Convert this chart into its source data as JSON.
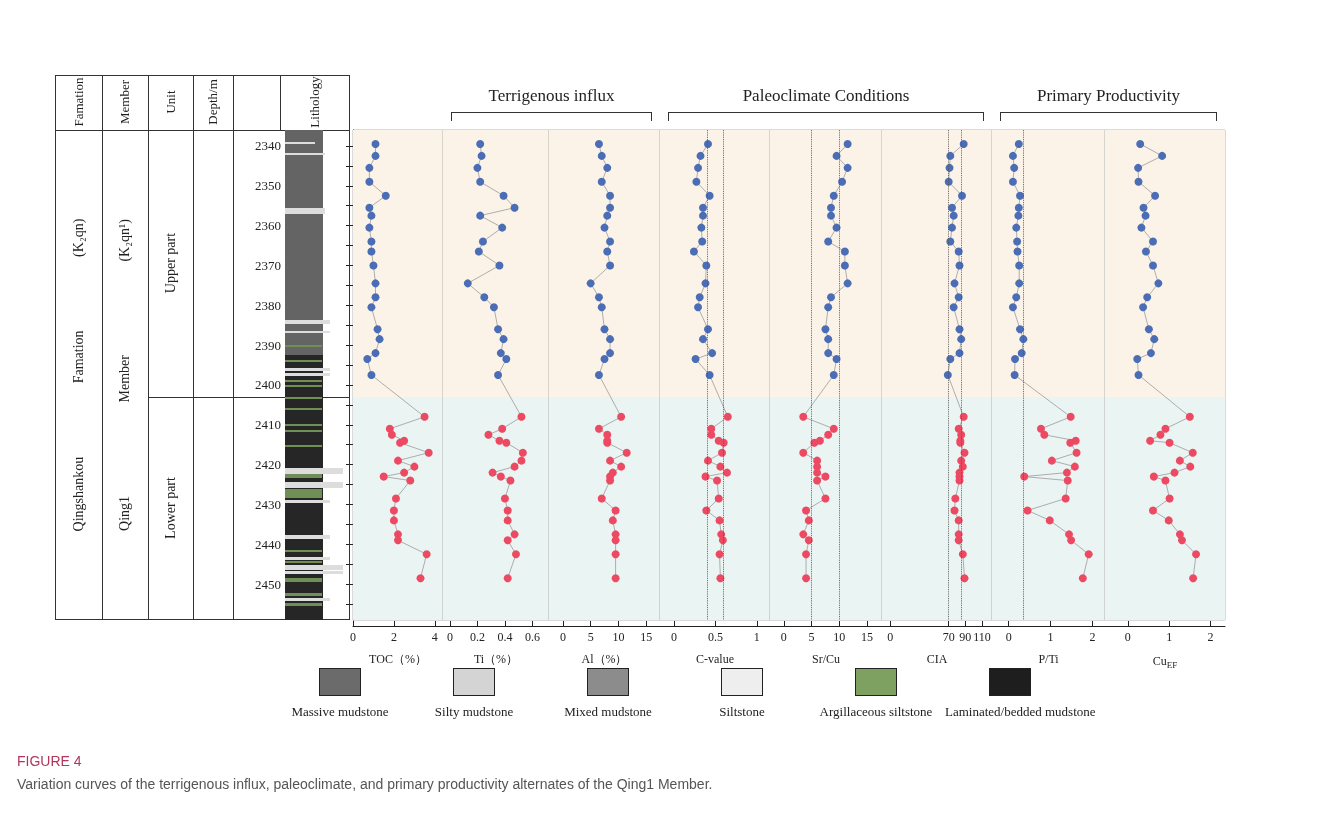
{
  "chart_data": [
    {
      "type": "line",
      "xlabel": "TOC（%）",
      "ylabel": "Depth/m",
      "annotations": [
        "Famation",
        "Member",
        "Unit",
        "Lithology",
        "Qingshankou Famation (K₂qn)",
        "Qing1 Member (K₂qn¹)",
        "Upper part",
        "Lower part"
      ],
      "xlim": [
        0,
        4.4
      ],
      "xticks": [
        0,
        2,
        4
      ],
      "ylim": [
        2459,
        2336
      ],
      "yticks": [
        2340,
        {
          "value": 2345,
          "label": null
        },
        2350,
        {
          "value": 2355,
          "label": null
        },
        2360,
        {
          "value": 2365,
          "label": null
        },
        2370,
        {
          "value": 2375,
          "label": null
        },
        2380,
        {
          "value": 2385,
          "label": null
        },
        2390,
        {
          "value": 2395,
          "label": null
        },
        2400,
        {
          "value": 2405,
          "label": null
        },
        2410,
        {
          "value": 2415,
          "label": null
        },
        2420,
        {
          "value": 2425,
          "label": null
        },
        2430,
        {
          "value": 2435,
          "label": null
        },
        2440,
        {
          "value": 2445,
          "label": null
        },
        2450,
        {
          "value": 2455,
          "label": null
        }
      ],
      "marker": "circle",
      "bands": [
        {
          "axis": "y",
          "from": 2336,
          "to": 2403,
          "color": "#fcf3e8"
        },
        {
          "axis": "y",
          "from": 2403,
          "to": 2459,
          "color": "#eaf4f2"
        }
      ],
      "series": [
        {
          "colors": [
            "#4a6db5",
            "#4a6db5",
            "#4a6db5",
            "#4a6db5",
            "#4a6db5",
            "#4a6db5",
            "#4a6db5",
            "#4a6db5",
            "#4a6db5",
            "#4a6db5",
            "#4a6db5",
            "#4a6db5",
            "#4a6db5",
            "#4a6db5",
            "#4a6db5",
            "#4a6db5",
            "#4a6db5",
            "#4a6db5",
            "#4a6db5",
            "#ec4a63",
            "#ec4a63",
            "#ec4a63",
            "#ec4a63",
            "#ec4a63",
            "#ec4a63",
            "#ec4a63",
            "#ec4a63",
            "#ec4a63",
            "#ec4a63",
            "#ec4a63",
            "#ec4a63",
            "#ec4a63",
            "#ec4a63",
            "#ec4a63",
            "#ec4a63",
            "#ec4a63",
            "#ec4a63"
          ],
          "x": [
            1.1,
            1.1,
            0.8,
            0.8,
            1.6,
            0.8,
            0.9,
            0.8,
            0.9,
            0.9,
            1.0,
            1.1,
            1.1,
            0.9,
            1.2,
            1.3,
            1.1,
            0.7,
            0.9,
            3.5,
            1.8,
            1.9,
            2.5,
            2.3,
            3.7,
            2.2,
            3.0,
            2.5,
            1.5,
            2.8,
            2.1,
            2.0,
            2.0,
            2.2,
            2.2,
            3.6,
            3.3
          ],
          "values": [
            2339.5,
            2342.5,
            2345.5,
            2349,
            2352.5,
            2355.5,
            2357.5,
            2360.5,
            2364,
            2366.5,
            2370,
            2374.5,
            2378,
            2380.5,
            2386,
            2388.5,
            2392,
            2393.5,
            2397.5,
            2408,
            2411,
            2412.5,
            2414,
            2414.5,
            2417,
            2419,
            2420.5,
            2422,
            2423,
            2424,
            2428.5,
            2431.5,
            2434,
            2437.5,
            2439,
            2442.5,
            2448.5
          ]
        }
      ]
    },
    {
      "type": "line",
      "xlabel": "Ti（%）",
      "annotations": [
        "Terrigenous influx"
      ],
      "tick_labels": "x",
      "xlim": [
        -0.05,
        0.72
      ],
      "xticks": [
        0,
        0.2,
        0.4,
        0.6
      ],
      "ylim": [
        2459,
        2336
      ],
      "marker": "circle",
      "bands": [
        {
          "axis": "y",
          "from": 2336,
          "to": 2403,
          "color": "#fcf3e8"
        },
        {
          "axis": "y",
          "from": 2403,
          "to": 2459,
          "color": "#eaf4f2"
        }
      ],
      "series": [
        {
          "colors": [
            "#4a6db5",
            "#4a6db5",
            "#4a6db5",
            "#4a6db5",
            "#4a6db5",
            "#4a6db5",
            "#4a6db5",
            "#4a6db5",
            "#4a6db5",
            "#4a6db5",
            "#4a6db5",
            "#4a6db5",
            "#4a6db5",
            "#4a6db5",
            "#4a6db5",
            "#4a6db5",
            "#4a6db5",
            "#4a6db5",
            "#4a6db5",
            "#ec4a63",
            "#ec4a63",
            "#ec4a63",
            "#ec4a63",
            "#ec4a63",
            "#ec4a63",
            "#ec4a63",
            "#ec4a63",
            "#ec4a63",
            "#ec4a63",
            "#ec4a63",
            "#ec4a63",
            "#ec4a63",
            "#ec4a63",
            "#ec4a63",
            "#ec4a63",
            "#ec4a63",
            "#ec4a63"
          ],
          "x": [
            0.22,
            0.23,
            0.2,
            0.22,
            0.39,
            0.47,
            0.22,
            0.38,
            0.24,
            0.21,
            0.36,
            0.13,
            0.25,
            0.32,
            0.35,
            0.39,
            0.37,
            0.41,
            0.35,
            0.52,
            0.38,
            0.28,
            0.36,
            0.41,
            0.53,
            0.52,
            0.47,
            0.31,
            0.37,
            0.44,
            0.4,
            0.42,
            0.42,
            0.47,
            0.42,
            0.48,
            0.42
          ],
          "values": [
            2339.5,
            2342.5,
            2345.5,
            2349,
            2352.5,
            2355.5,
            2357.5,
            2360.5,
            2364,
            2366.5,
            2370,
            2374.5,
            2378,
            2380.5,
            2386,
            2388.5,
            2392,
            2393.5,
            2397.5,
            2408,
            2411,
            2412.5,
            2414,
            2414.5,
            2417,
            2419,
            2420.5,
            2422,
            2423,
            2424,
            2428.5,
            2431.5,
            2434,
            2437.5,
            2439,
            2442.5,
            2448.5
          ]
        }
      ]
    },
    {
      "type": "line",
      "xlabel": "Al（%）",
      "tick_labels": "x",
      "xlim": [
        -2.5,
        17.5
      ],
      "xticks": [
        0,
        5,
        10,
        15
      ],
      "ylim": [
        2459,
        2336
      ],
      "marker": "circle",
      "bands": [
        {
          "axis": "y",
          "from": 2336,
          "to": 2403,
          "color": "#fcf3e8"
        },
        {
          "axis": "y",
          "from": 2403,
          "to": 2459,
          "color": "#eaf4f2"
        }
      ],
      "series": [
        {
          "colors": [
            "#4a6db5",
            "#4a6db5",
            "#4a6db5",
            "#4a6db5",
            "#4a6db5",
            "#4a6db5",
            "#4a6db5",
            "#4a6db5",
            "#4a6db5",
            "#4a6db5",
            "#4a6db5",
            "#4a6db5",
            "#4a6db5",
            "#4a6db5",
            "#4a6db5",
            "#4a6db5",
            "#4a6db5",
            "#4a6db5",
            "#4a6db5",
            "#ec4a63",
            "#ec4a63",
            "#ec4a63",
            "#ec4a63",
            "#ec4a63",
            "#ec4a63",
            "#ec4a63",
            "#ec4a63",
            "#ec4a63",
            "#ec4a63",
            "#ec4a63",
            "#ec4a63",
            "#ec4a63",
            "#ec4a63",
            "#ec4a63",
            "#ec4a63",
            "#ec4a63",
            "#ec4a63"
          ],
          "x": [
            6.5,
            7,
            8,
            7,
            8.5,
            8.5,
            8,
            7.5,
            8.5,
            8,
            8.5,
            5,
            6.5,
            7,
            7.5,
            8.5,
            8.5,
            7.5,
            6.5,
            10.5,
            6.5,
            8,
            8,
            8,
            11.5,
            8.5,
            10.5,
            9,
            8.5,
            8.5,
            7,
            9.5,
            9,
            9.5,
            9.5,
            9.5,
            9.5
          ],
          "values": [
            2339.5,
            2342.5,
            2345.5,
            2349,
            2352.5,
            2355.5,
            2357.5,
            2360.5,
            2364,
            2366.5,
            2370,
            2374.5,
            2378,
            2380.5,
            2386,
            2388.5,
            2392,
            2393.5,
            2397.5,
            2408,
            2411,
            2412.5,
            2414,
            2414.5,
            2417,
            2419,
            2420.5,
            2422,
            2423,
            2424,
            2428.5,
            2431.5,
            2434,
            2437.5,
            2439,
            2442.5,
            2448.5
          ]
        }
      ]
    },
    {
      "type": "line",
      "xlabel": "C-value",
      "annotations": [
        "Paleoclimate Conditions"
      ],
      "tick_labels": "x",
      "xlim": [
        -0.17,
        1.16
      ],
      "xticks": [
        0,
        0.5,
        1
      ],
      "ylim": [
        2459,
        2336
      ],
      "marker": "circle",
      "bands": [
        {
          "axis": "y",
          "from": 2336,
          "to": 2403,
          "color": "#fcf3e8"
        },
        {
          "axis": "y",
          "from": 2403,
          "to": 2459,
          "color": "#eaf4f2"
        }
      ],
      "ref_lines": [
        {
          "axis": "x",
          "value": 0.4,
          "line_style": "dotted"
        },
        {
          "axis": "x",
          "value": 0.6,
          "line_style": "dotted"
        }
      ],
      "series": [
        {
          "colors": [
            "#4a6db5",
            "#4a6db5",
            "#4a6db5",
            "#4a6db5",
            "#4a6db5",
            "#4a6db5",
            "#4a6db5",
            "#4a6db5",
            "#4a6db5",
            "#4a6db5",
            "#4a6db5",
            "#4a6db5",
            "#4a6db5",
            "#4a6db5",
            "#4a6db5",
            "#4a6db5",
            "#4a6db5",
            "#4a6db5",
            "#4a6db5",
            "#ec4a63",
            "#ec4a63",
            "#ec4a63",
            "#ec4a63",
            "#ec4a63",
            "#ec4a63",
            "#ec4a63",
            "#ec4a63",
            "#ec4a63",
            "#ec4a63",
            "#ec4a63",
            "#ec4a63",
            "#ec4a63",
            "#ec4a63",
            "#ec4a63",
            "#ec4a63",
            "#ec4a63",
            "#ec4a63"
          ],
          "x": [
            0.41,
            0.32,
            0.29,
            0.27,
            0.43,
            0.35,
            0.35,
            0.33,
            0.34,
            0.24,
            0.39,
            0.38,
            0.31,
            0.29,
            0.41,
            0.35,
            0.46,
            0.26,
            0.43,
            0.65,
            0.45,
            0.45,
            0.54,
            0.6,
            0.58,
            0.41,
            0.56,
            0.64,
            0.38,
            0.52,
            0.54,
            0.39,
            0.55,
            0.57,
            0.59,
            0.55,
            0.56
          ],
          "values": [
            2339.5,
            2342.5,
            2345.5,
            2349,
            2352.5,
            2355.5,
            2357.5,
            2360.5,
            2364,
            2366.5,
            2370,
            2374.5,
            2378,
            2380.5,
            2386,
            2388.5,
            2392,
            2393.5,
            2397.5,
            2408,
            2411,
            2412.5,
            2414,
            2414.5,
            2417,
            2419,
            2420.5,
            2422,
            2423,
            2424,
            2428.5,
            2431.5,
            2434,
            2437.5,
            2439,
            2442.5,
            2448.5
          ]
        }
      ]
    },
    {
      "type": "line",
      "xlabel": "Sr/Cu",
      "tick_labels": "x",
      "xlim": [
        -2.5,
        17.7
      ],
      "xticks": [
        0,
        5,
        10,
        15
      ],
      "ylim": [
        2459,
        2336
      ],
      "marker": "circle",
      "bands": [
        {
          "axis": "y",
          "from": 2336,
          "to": 2403,
          "color": "#fcf3e8"
        },
        {
          "axis": "y",
          "from": 2403,
          "to": 2459,
          "color": "#eaf4f2"
        }
      ],
      "ref_lines": [
        {
          "axis": "x",
          "value": 5,
          "line_style": "dotted"
        },
        {
          "axis": "x",
          "value": 10,
          "line_style": "dotted"
        }
      ],
      "series": [
        {
          "colors": [
            "#4a6db5",
            "#4a6db5",
            "#4a6db5",
            "#4a6db5",
            "#4a6db5",
            "#4a6db5",
            "#4a6db5",
            "#4a6db5",
            "#4a6db5",
            "#4a6db5",
            "#4a6db5",
            "#4a6db5",
            "#4a6db5",
            "#4a6db5",
            "#4a6db5",
            "#4a6db5",
            "#4a6db5",
            "#4a6db5",
            "#4a6db5",
            "#ec4a63",
            "#ec4a63",
            "#ec4a63",
            "#ec4a63",
            "#ec4a63",
            "#ec4a63",
            "#ec4a63",
            "#ec4a63",
            "#ec4a63",
            "#ec4a63",
            "#ec4a63",
            "#ec4a63",
            "#ec4a63",
            "#ec4a63",
            "#ec4a63",
            "#ec4a63",
            "#ec4a63",
            "#ec4a63"
          ],
          "x": [
            11.5,
            9.5,
            11.5,
            10.5,
            9,
            8.5,
            8.5,
            9.5,
            8,
            11,
            11,
            11.5,
            8.5,
            8,
            7.5,
            8,
            8,
            9.5,
            9,
            3.5,
            9,
            8,
            6.5,
            5.5,
            3.5,
            6,
            6,
            6,
            7.5,
            6,
            7.5,
            4,
            4.5,
            3.5,
            4.5,
            4,
            4
          ],
          "values": [
            2339.5,
            2342.5,
            2345.5,
            2349,
            2352.5,
            2355.5,
            2357.5,
            2360.5,
            2364,
            2366.5,
            2370,
            2374.5,
            2378,
            2380.5,
            2386,
            2388.5,
            2392,
            2393.5,
            2397.5,
            2408,
            2411,
            2412.5,
            2414,
            2414.5,
            2417,
            2419,
            2420.5,
            2422,
            2423,
            2424,
            2428.5,
            2431.5,
            2434,
            2437.5,
            2439,
            2442.5,
            2448.5
          ]
        }
      ]
    },
    {
      "type": "line",
      "xlabel": "CIA",
      "tick_labels": "x",
      "xlim": [
        -10,
        122
      ],
      "xticks": [
        0,
        70,
        90,
        110
      ],
      "ylim": [
        2459,
        2336
      ],
      "marker": "circle",
      "bands": [
        {
          "axis": "y",
          "from": 2336,
          "to": 2403,
          "color": "#fcf3e8"
        },
        {
          "axis": "y",
          "from": 2403,
          "to": 2459,
          "color": "#eaf4f2"
        }
      ],
      "ref_lines": [
        {
          "axis": "x",
          "value": 70,
          "line_style": "dotted"
        },
        {
          "axis": "x",
          "value": 85,
          "line_style": "dotted"
        }
      ],
      "series": [
        {
          "colors": [
            "#4a6db5",
            "#4a6db5",
            "#4a6db5",
            "#4a6db5",
            "#4a6db5",
            "#4a6db5",
            "#4a6db5",
            "#4a6db5",
            "#4a6db5",
            "#4a6db5",
            "#4a6db5",
            "#4a6db5",
            "#4a6db5",
            "#4a6db5",
            "#4a6db5",
            "#4a6db5",
            "#4a6db5",
            "#4a6db5",
            "#4a6db5",
            "#ec4a63",
            "#ec4a63",
            "#ec4a63",
            "#ec4a63",
            "#ec4a63",
            "#ec4a63",
            "#ec4a63",
            "#ec4a63",
            "#ec4a63",
            "#ec4a63",
            "#ec4a63",
            "#ec4a63",
            "#ec4a63",
            "#ec4a63",
            "#ec4a63",
            "#ec4a63",
            "#ec4a63",
            "#ec4a63"
          ],
          "x": [
            88,
            72,
            71,
            70,
            86,
            74,
            76,
            74,
            72,
            82,
            83,
            77,
            82,
            76,
            83,
            85,
            83,
            72,
            69,
            88,
            82,
            85,
            84,
            84,
            89,
            85,
            87,
            83,
            83,
            83,
            78,
            77,
            82,
            82,
            82,
            87,
            89
          ],
          "values": [
            2339.5,
            2342.5,
            2345.5,
            2349,
            2352.5,
            2355.5,
            2357.5,
            2360.5,
            2364,
            2366.5,
            2370,
            2374.5,
            2378,
            2380.5,
            2386,
            2388.5,
            2392,
            2393.5,
            2397.5,
            2408,
            2411,
            2412.5,
            2414,
            2414.5,
            2417,
            2419,
            2420.5,
            2422,
            2423,
            2424,
            2428.5,
            2431.5,
            2434,
            2437.5,
            2439,
            2442.5,
            2448.5
          ]
        }
      ]
    },
    {
      "type": "line",
      "xlabel": "P/Ti",
      "annotations": [
        "Primary Productivity"
      ],
      "tick_labels": "x",
      "xlim": [
        -0.4,
        2.3
      ],
      "xticks": [
        0,
        1,
        2
      ],
      "ylim": [
        2459,
        2336
      ],
      "marker": "circle",
      "bands": [
        {
          "axis": "y",
          "from": 2336,
          "to": 2403,
          "color": "#fcf3e8"
        },
        {
          "axis": "y",
          "from": 2403,
          "to": 2459,
          "color": "#eaf4f2"
        }
      ],
      "ref_lines": [
        {
          "axis": "x",
          "value": 0.34,
          "line_style": "dotted"
        }
      ],
      "series": [
        {
          "colors": [
            "#4a6db5",
            "#4a6db5",
            "#4a6db5",
            "#4a6db5",
            "#4a6db5",
            "#4a6db5",
            "#4a6db5",
            "#4a6db5",
            "#4a6db5",
            "#4a6db5",
            "#4a6db5",
            "#4a6db5",
            "#4a6db5",
            "#4a6db5",
            "#4a6db5",
            "#4a6db5",
            "#4a6db5",
            "#4a6db5",
            "#4a6db5",
            "#ec4a63",
            "#ec4a63",
            "#ec4a63",
            "#ec4a63",
            "#ec4a63",
            "#ec4a63",
            "#ec4a63",
            "#ec4a63",
            "#ec4a63",
            "#ec4a63",
            "#ec4a63",
            "#ec4a63",
            "#ec4a63",
            "#ec4a63",
            "#ec4a63",
            "#ec4a63",
            "#ec4a63",
            "#ec4a63"
          ],
          "x": [
            0.24,
            0.1,
            0.13,
            0.1,
            0.27,
            0.24,
            0.23,
            0.18,
            0.2,
            0.21,
            0.25,
            0.25,
            0.18,
            0.1,
            0.27,
            0.35,
            0.31,
            0.15,
            0.14,
            1.48,
            0.77,
            0.85,
            1.6,
            1.47,
            1.62,
            1.03,
            1.58,
            1.39,
            0.37,
            1.41,
            1.36,
            0.45,
            0.98,
            1.44,
            1.49,
            1.91,
            1.77
          ],
          "values": [
            2339.5,
            2342.5,
            2345.5,
            2349,
            2352.5,
            2355.5,
            2357.5,
            2360.5,
            2364,
            2366.5,
            2370,
            2374.5,
            2378,
            2380.5,
            2386,
            2388.5,
            2392,
            2393.5,
            2397.5,
            2408,
            2411,
            2412.5,
            2414,
            2414.5,
            2417,
            2419,
            2420.5,
            2422,
            2423,
            2424,
            2428.5,
            2431.5,
            2434,
            2437.5,
            2439,
            2442.5,
            2448.5
          ]
        }
      ]
    },
    {
      "type": "line",
      "xlabel": "Cu$_{EF}$",
      "tick_labels": "x",
      "xlim": [
        -0.55,
        2.35
      ],
      "xticks": [
        0,
        1,
        2
      ],
      "ylim": [
        2459,
        2336
      ],
      "marker": "circle",
      "bands": [
        {
          "axis": "y",
          "from": 2336,
          "to": 2403,
          "color": "#fcf3e8"
        },
        {
          "axis": "y",
          "from": 2403,
          "to": 2459,
          "color": "#eaf4f2"
        }
      ],
      "series": [
        {
          "colors": [
            "#4a6db5",
            "#4a6db5",
            "#4a6db5",
            "#4a6db5",
            "#4a6db5",
            "#4a6db5",
            "#4a6db5",
            "#4a6db5",
            "#4a6db5",
            "#4a6db5",
            "#4a6db5",
            "#4a6db5",
            "#4a6db5",
            "#4a6db5",
            "#4a6db5",
            "#4a6db5",
            "#4a6db5",
            "#4a6db5",
            "#4a6db5",
            "#ec4a63",
            "#ec4a63",
            "#ec4a63",
            "#ec4a63",
            "#ec4a63",
            "#ec4a63",
            "#ec4a63",
            "#ec4a63",
            "#ec4a63",
            "#ec4a63",
            "#ec4a63",
            "#ec4a63",
            "#ec4a63",
            "#ec4a63",
            "#ec4a63",
            "#ec4a63",
            "#ec4a63",
            "#ec4a63"
          ],
          "x": [
            0.3,
            0.83,
            0.25,
            0.26,
            0.66,
            0.38,
            0.43,
            0.33,
            0.61,
            0.44,
            0.61,
            0.74,
            0.47,
            0.37,
            0.51,
            0.64,
            0.56,
            0.23,
            0.26,
            1.5,
            0.91,
            0.79,
            0.54,
            1.01,
            1.57,
            1.26,
            1.51,
            1.13,
            0.63,
            0.91,
            1.01,
            0.61,
            0.99,
            1.26,
            1.31,
            1.65,
            1.58
          ],
          "values": [
            2339.5,
            2342.5,
            2345.5,
            2349,
            2352.5,
            2355.5,
            2357.5,
            2360.5,
            2364,
            2366.5,
            2370,
            2374.5,
            2378,
            2380.5,
            2386,
            2388.5,
            2392,
            2393.5,
            2397.5,
            2408,
            2411,
            2412.5,
            2414,
            2414.5,
            2417,
            2419,
            2420.5,
            2422,
            2423,
            2424,
            2428.5,
            2431.5,
            2434,
            2437.5,
            2439,
            2442.5,
            2448.5
          ]
        }
      ]
    },
    {
      "type": "other",
      "title": "FIGURE 4",
      "subtitle": "Variation curves of the terrigenous influx, paleoclimate, and primary productivity alternates of the Qing1 Member.",
      "categories": [
        "Massive mudstone",
        "Silty mudstone",
        "Mixed mudstone",
        "Siltstone",
        "Argillaceous siltstone",
        "Laminated/bedded mudstone"
      ],
      "colors": [
        "#6b6b6b",
        "#d4d4d4",
        "#8c8c8c",
        "#eeeeee",
        "#7ea060",
        "#1e1e1e"
      ]
    }
  ]
}
